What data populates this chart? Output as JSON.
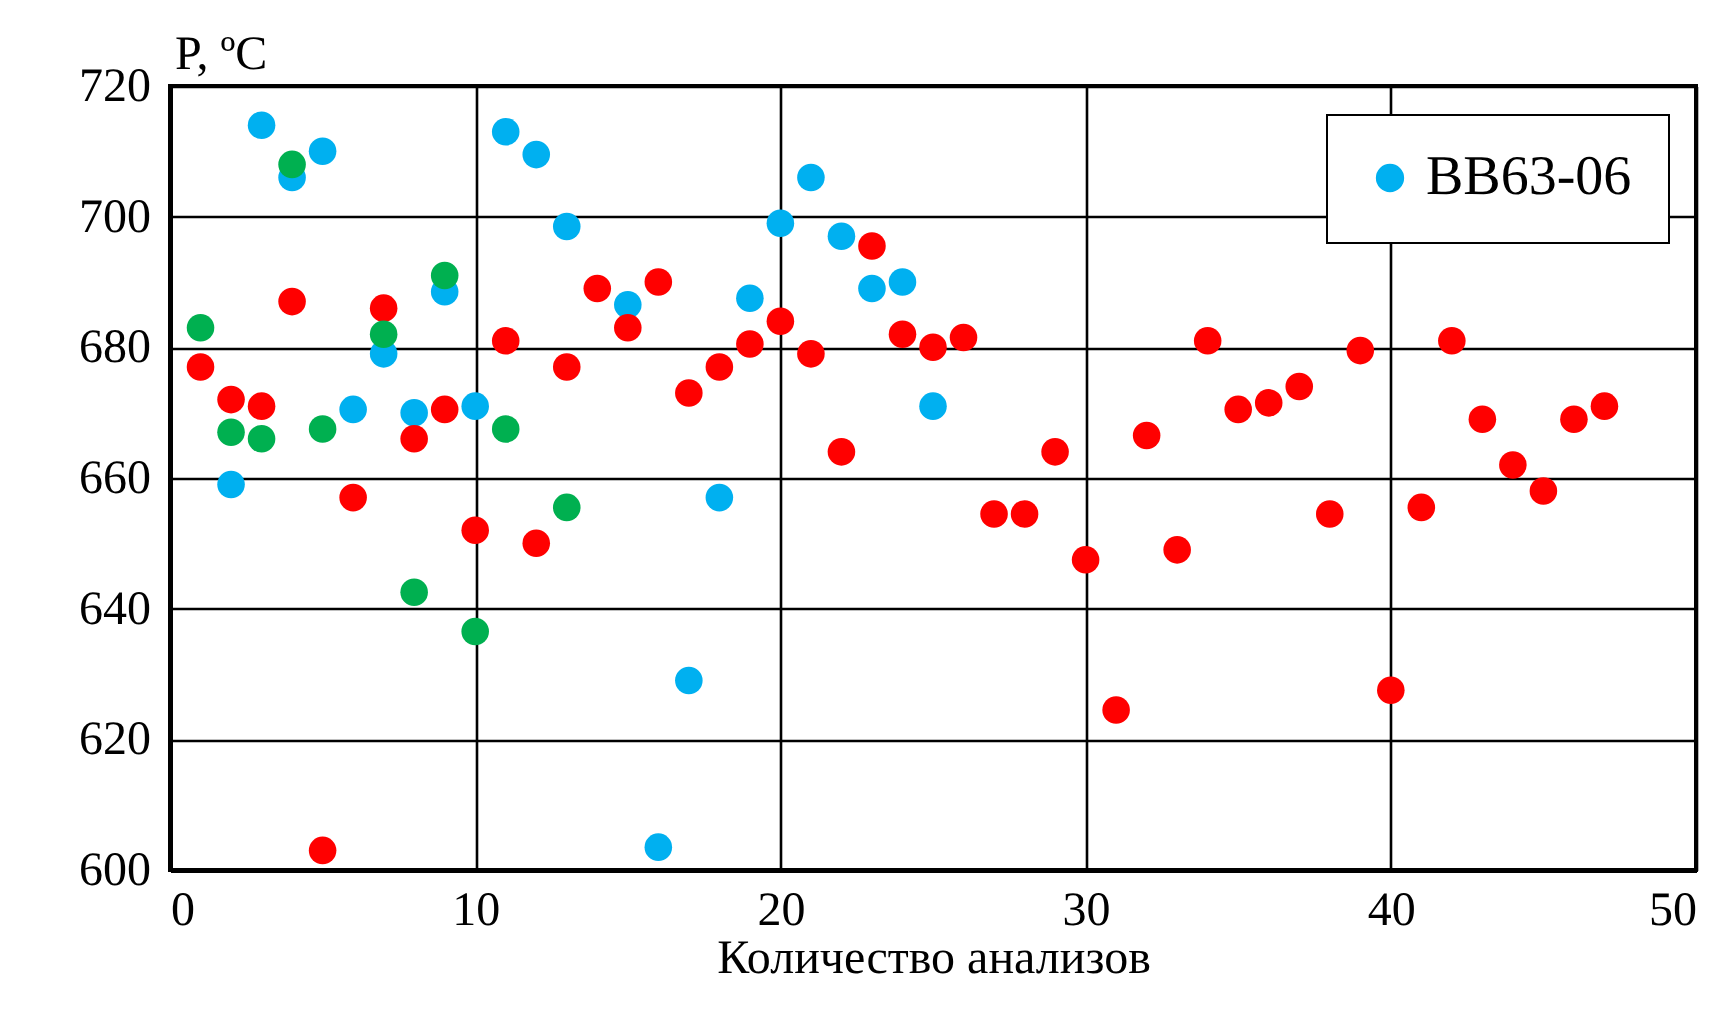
{
  "chart_data": {
    "type": "scatter",
    "xlabel": "Количество анализов",
    "ylabel": "P, ºC",
    "xlim": [
      0,
      50
    ],
    "xticks": [
      0,
      10,
      20,
      30,
      40,
      50
    ],
    "ylim": [
      600,
      720
    ],
    "yticks": [
      600,
      620,
      640,
      660,
      680,
      700,
      720
    ],
    "grid": true,
    "legend": "top right",
    "marker": "circle",
    "series": [
      {
        "name": "BB63-06",
        "color": "#00b0f0",
        "x": [
          2,
          3,
          4,
          5,
          6,
          7,
          8,
          9,
          10,
          11,
          12,
          13,
          15,
          16,
          17,
          18,
          19,
          20,
          21,
          22,
          23,
          24,
          25
        ],
        "values": [
          659,
          714,
          706,
          710,
          670.5,
          679,
          670,
          688.5,
          671,
          713,
          709.5,
          698.5,
          686.5,
          603.5,
          629,
          657,
          687.5,
          699,
          706,
          697,
          689,
          690,
          671
        ]
      },
      {
        "color": "#ff0000",
        "x": [
          1,
          2,
          3,
          4,
          5,
          6,
          7,
          8,
          9,
          10,
          11,
          12,
          13,
          14,
          15,
          16,
          17,
          18,
          19,
          20,
          21,
          22,
          23,
          24,
          25,
          26,
          27,
          28,
          29,
          30,
          31,
          32,
          33,
          34,
          35,
          36,
          37,
          38,
          39,
          40,
          41,
          42,
          43,
          44,
          45,
          46,
          47
        ],
        "values": [
          677,
          672,
          671,
          687,
          603,
          657,
          686,
          666,
          670.5,
          652,
          681,
          650,
          677,
          689,
          683,
          690,
          673,
          677,
          680.5,
          684,
          679,
          664,
          695.5,
          682,
          680,
          681.5,
          654.5,
          654.5,
          664,
          647.5,
          624.5,
          666.5,
          649,
          681,
          670.5,
          671.5,
          674,
          654.5,
          679.5,
          627.5,
          655.5,
          681,
          669,
          662,
          658,
          669,
          671
        ]
      },
      {
        "color": "#00b050",
        "x": [
          1,
          2,
          3,
          4,
          5,
          7,
          8,
          9,
          10,
          11,
          13
        ],
        "values": [
          683,
          667,
          666,
          708,
          667.5,
          682,
          642.5,
          691,
          636.5,
          667.5,
          655.5
        ]
      }
    ]
  }
}
